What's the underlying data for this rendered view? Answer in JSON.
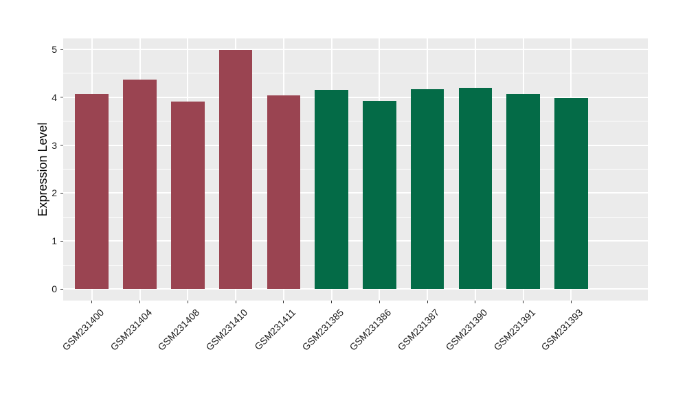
{
  "chart_data": {
    "type": "bar",
    "ylabel": "Expression Level",
    "categories": [
      "GSM231400",
      "GSM231404",
      "GSM231408",
      "GSM231410",
      "GSM231411",
      "GSM231385",
      "GSM231386",
      "GSM231387",
      "GSM231390",
      "GSM231391",
      "GSM231393"
    ],
    "values": [
      4.07,
      4.37,
      3.91,
      4.98,
      4.04,
      4.15,
      3.92,
      4.17,
      4.2,
      4.07,
      3.98
    ],
    "groups": [
      "group1",
      "group1",
      "group1",
      "group1",
      "group1",
      "group2",
      "group2",
      "group2",
      "group2",
      "group2",
      "group2"
    ],
    "group_colors": {
      "group1": "#9A4451",
      "group2": "#046B47"
    },
    "ylim": [
      0,
      5
    ],
    "yticks": [
      0,
      1,
      2,
      3,
      4,
      5
    ],
    "minor_grid_step": 0.5,
    "bar_width_fraction": 0.7,
    "grid": "on",
    "legend": "none",
    "panel_bg": "#EBEBEB",
    "grid_color": "#FFFFFF",
    "axis_text_color": "#1a1a1a",
    "tick_mark_color": "#333333"
  }
}
